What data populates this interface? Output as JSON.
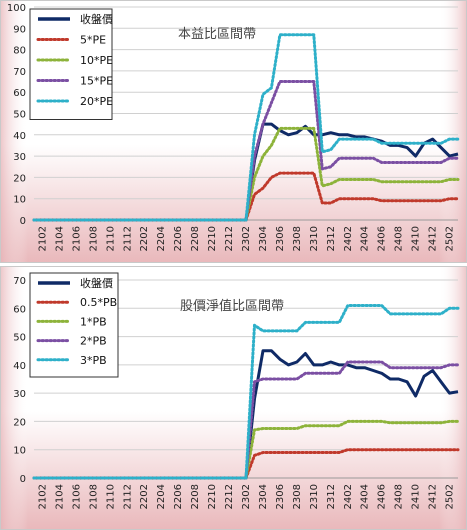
{
  "chart_data": [
    {
      "type": "line",
      "title": "本益比區間帶",
      "xlabel": "",
      "ylabel": "",
      "ylim": [
        0,
        100
      ],
      "yticks": [
        0,
        10,
        20,
        30,
        40,
        50,
        60,
        70,
        80,
        90,
        100
      ],
      "grid": "horizontal",
      "legend_position": "top-left",
      "x_tick_labels": [
        "2102",
        "2104",
        "2106",
        "2108",
        "2110",
        "2112",
        "2202",
        "2204",
        "2206",
        "2208",
        "2210",
        "2212",
        "2302",
        "2304",
        "2306",
        "2308",
        "2310",
        "2312",
        "2402",
        "2404",
        "2406",
        "2408",
        "2410",
        "2412",
        "2502"
      ],
      "x": [
        "2101",
        "2102",
        "2103",
        "2104",
        "2105",
        "2106",
        "2107",
        "2108",
        "2109",
        "2110",
        "2111",
        "2112",
        "2201",
        "2202",
        "2203",
        "2204",
        "2205",
        "2206",
        "2207",
        "2208",
        "2209",
        "2210",
        "2211",
        "2212",
        "2301",
        "2302",
        "2303",
        "2304",
        "2305",
        "2306",
        "2307",
        "2308",
        "2309",
        "2310",
        "2311",
        "2312",
        "2401",
        "2402",
        "2403",
        "2404",
        "2405",
        "2406",
        "2407",
        "2408",
        "2409",
        "2410",
        "2411",
        "2412",
        "2501",
        "2502",
        "2503"
      ],
      "series": [
        {
          "name": "收盤價",
          "color": "#0f2a66",
          "style": "solid",
          "values": [
            0,
            0,
            0,
            0,
            0,
            0,
            0,
            0,
            0,
            0,
            0,
            0,
            0,
            0,
            0,
            0,
            0,
            0,
            0,
            0,
            0,
            0,
            0,
            0,
            0,
            0,
            28,
            45,
            45,
            42,
            40,
            41,
            44,
            40,
            40,
            41,
            40,
            40,
            39,
            39,
            38,
            37,
            35,
            35,
            34,
            30,
            36,
            38,
            34,
            30,
            31
          ]
        },
        {
          "name": "5*PE",
          "color": "#c0392b",
          "style": "dotted",
          "values": [
            0,
            0,
            0,
            0,
            0,
            0,
            0,
            0,
            0,
            0,
            0,
            0,
            0,
            0,
            0,
            0,
            0,
            0,
            0,
            0,
            0,
            0,
            0,
            0,
            0,
            0,
            12,
            15,
            20,
            22,
            22,
            22,
            22,
            22,
            8,
            8,
            10,
            10,
            10,
            10,
            10,
            9,
            9,
            9,
            9,
            9,
            9,
            9,
            9,
            10,
            10
          ]
        },
        {
          "name": "10*PE",
          "color": "#8db33a",
          "style": "dotted",
          "values": [
            0,
            0,
            0,
            0,
            0,
            0,
            0,
            0,
            0,
            0,
            0,
            0,
            0,
            0,
            0,
            0,
            0,
            0,
            0,
            0,
            0,
            0,
            0,
            0,
            0,
            0,
            20,
            30,
            35,
            43,
            43,
            43,
            43,
            43,
            16,
            17,
            19,
            19,
            19,
            19,
            19,
            18,
            18,
            18,
            18,
            18,
            18,
            18,
            18,
            19,
            19
          ]
        },
        {
          "name": "15*PE",
          "color": "#7b4fa3",
          "style": "dotted",
          "values": [
            0,
            0,
            0,
            0,
            0,
            0,
            0,
            0,
            0,
            0,
            0,
            0,
            0,
            0,
            0,
            0,
            0,
            0,
            0,
            0,
            0,
            0,
            0,
            0,
            0,
            0,
            30,
            45,
            55,
            65,
            65,
            65,
            65,
            65,
            24,
            25,
            29,
            29,
            29,
            29,
            29,
            27,
            27,
            27,
            27,
            27,
            27,
            27,
            27,
            29,
            29
          ]
        },
        {
          "name": "20*PE",
          "color": "#2eb0c9",
          "style": "dotted",
          "values": [
            0,
            0,
            0,
            0,
            0,
            0,
            0,
            0,
            0,
            0,
            0,
            0,
            0,
            0,
            0,
            0,
            0,
            0,
            0,
            0,
            0,
            0,
            0,
            0,
            0,
            0,
            40,
            59,
            62,
            87,
            87,
            87,
            87,
            87,
            32,
            33,
            38,
            38,
            38,
            38,
            38,
            36,
            36,
            36,
            36,
            36,
            36,
            36,
            36,
            38,
            38
          ]
        }
      ]
    },
    {
      "type": "line",
      "title": "股價淨值比區間帶",
      "xlabel": "",
      "ylabel": "",
      "ylim": [
        0,
        70
      ],
      "yticks": [
        0,
        10,
        20,
        30,
        40,
        50,
        60,
        70
      ],
      "grid": "horizontal",
      "legend_position": "top-left",
      "x_tick_labels": [
        "2102",
        "2104",
        "2106",
        "2108",
        "2110",
        "2112",
        "2202",
        "2204",
        "2206",
        "2208",
        "2210",
        "2212",
        "2302",
        "2304",
        "2306",
        "2308",
        "2310",
        "2312",
        "2402",
        "2404",
        "2406",
        "2408",
        "2410",
        "2412",
        "2502"
      ],
      "x": [
        "2101",
        "2102",
        "2103",
        "2104",
        "2105",
        "2106",
        "2107",
        "2108",
        "2109",
        "2110",
        "2111",
        "2112",
        "2201",
        "2202",
        "2203",
        "2204",
        "2205",
        "2206",
        "2207",
        "2208",
        "2209",
        "2210",
        "2211",
        "2212",
        "2301",
        "2302",
        "2303",
        "2304",
        "2305",
        "2306",
        "2307",
        "2308",
        "2309",
        "2310",
        "2311",
        "2312",
        "2401",
        "2402",
        "2403",
        "2404",
        "2405",
        "2406",
        "2407",
        "2408",
        "2409",
        "2410",
        "2411",
        "2412",
        "2501",
        "2502",
        "2503"
      ],
      "series": [
        {
          "name": "收盤價",
          "color": "#0f2a66",
          "style": "solid",
          "values": [
            0,
            0,
            0,
            0,
            0,
            0,
            0,
            0,
            0,
            0,
            0,
            0,
            0,
            0,
            0,
            0,
            0,
            0,
            0,
            0,
            0,
            0,
            0,
            0,
            0,
            0,
            28,
            45,
            45,
            42,
            40,
            41,
            44,
            40,
            40,
            41,
            40,
            40,
            39,
            39,
            38,
            37,
            35,
            35,
            34,
            29,
            36,
            38,
            34,
            30,
            30.5
          ]
        },
        {
          "name": "0.5*PB",
          "color": "#c0392b",
          "style": "dotted",
          "values": [
            0,
            0,
            0,
            0,
            0,
            0,
            0,
            0,
            0,
            0,
            0,
            0,
            0,
            0,
            0,
            0,
            0,
            0,
            0,
            0,
            0,
            0,
            0,
            0,
            0,
            0,
            8,
            9,
            9,
            9,
            9,
            9,
            9,
            9,
            9,
            9,
            9,
            10,
            10,
            10,
            10,
            10,
            10,
            10,
            10,
            10,
            10,
            10,
            10,
            10,
            10
          ]
        },
        {
          "name": "1*PB",
          "color": "#8db33a",
          "style": "dotted",
          "values": [
            0,
            0,
            0,
            0,
            0,
            0,
            0,
            0,
            0,
            0,
            0,
            0,
            0,
            0,
            0,
            0,
            0,
            0,
            0,
            0,
            0,
            0,
            0,
            0,
            0,
            0,
            17,
            17.5,
            17.5,
            17.5,
            17.5,
            17.5,
            18.5,
            18.5,
            18.5,
            18.5,
            18.5,
            20,
            20,
            20,
            20,
            20,
            19.5,
            19.5,
            19.5,
            19.5,
            19.5,
            19.5,
            19.5,
            20,
            20
          ]
        },
        {
          "name": "2*PB",
          "color": "#7b4fa3",
          "style": "dotted",
          "values": [
            0,
            0,
            0,
            0,
            0,
            0,
            0,
            0,
            0,
            0,
            0,
            0,
            0,
            0,
            0,
            0,
            0,
            0,
            0,
            0,
            0,
            0,
            0,
            0,
            0,
            0,
            34,
            35,
            35,
            35,
            35,
            35,
            37,
            37,
            37,
            37,
            37,
            41,
            41,
            41,
            41,
            41,
            39,
            39,
            39,
            39,
            39,
            39,
            39,
            40,
            40
          ]
        },
        {
          "name": "3*PB",
          "color": "#2eb0c9",
          "style": "dotted",
          "values": [
            0,
            0,
            0,
            0,
            0,
            0,
            0,
            0,
            0,
            0,
            0,
            0,
            0,
            0,
            0,
            0,
            0,
            0,
            0,
            0,
            0,
            0,
            0,
            0,
            0,
            0,
            54,
            52,
            52,
            52,
            52,
            52,
            55,
            55,
            55,
            55,
            55,
            61,
            61,
            61,
            61,
            61,
            58,
            58,
            58,
            58,
            58,
            58,
            58,
            60,
            60
          ]
        }
      ]
    }
  ]
}
